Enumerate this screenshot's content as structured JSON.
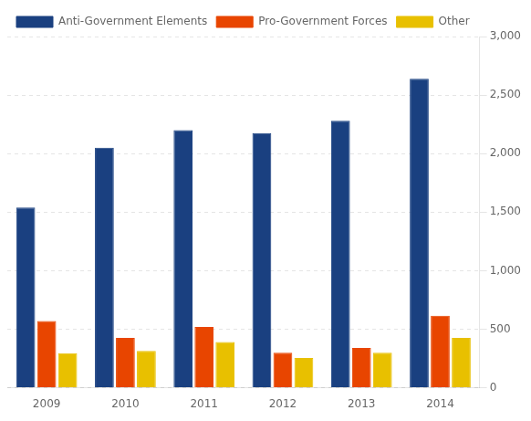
{
  "chart_data": {
    "type": "bar",
    "categories": [
      "2009",
      "2010",
      "2011",
      "2012",
      "2013",
      "2014"
    ],
    "series": [
      {
        "name": "Anti-Government Elements",
        "color": "#1a4080",
        "values": [
          1540,
          2050,
          2200,
          2175,
          2280,
          2640
        ]
      },
      {
        "name": "Pro-Government Forces",
        "color": "#e84500",
        "values": [
          570,
          425,
          520,
          300,
          340,
          615
        ]
      },
      {
        "name": "Other",
        "color": "#e8c000",
        "values": [
          295,
          315,
          390,
          255,
          300,
          425
        ]
      }
    ],
    "ylim": [
      0,
      3000
    ],
    "yticks": [
      0,
      500,
      {
        "value": 1000,
        "label": "1,000"
      },
      {
        "value": 1500,
        "label": "1,500"
      },
      {
        "value": 2000,
        "label": "2,000"
      },
      {
        "value": 2500,
        "label": "2,500"
      },
      {
        "value": 3000,
        "label": "3,000"
      }
    ],
    "grid": true,
    "legend": "upper left"
  }
}
